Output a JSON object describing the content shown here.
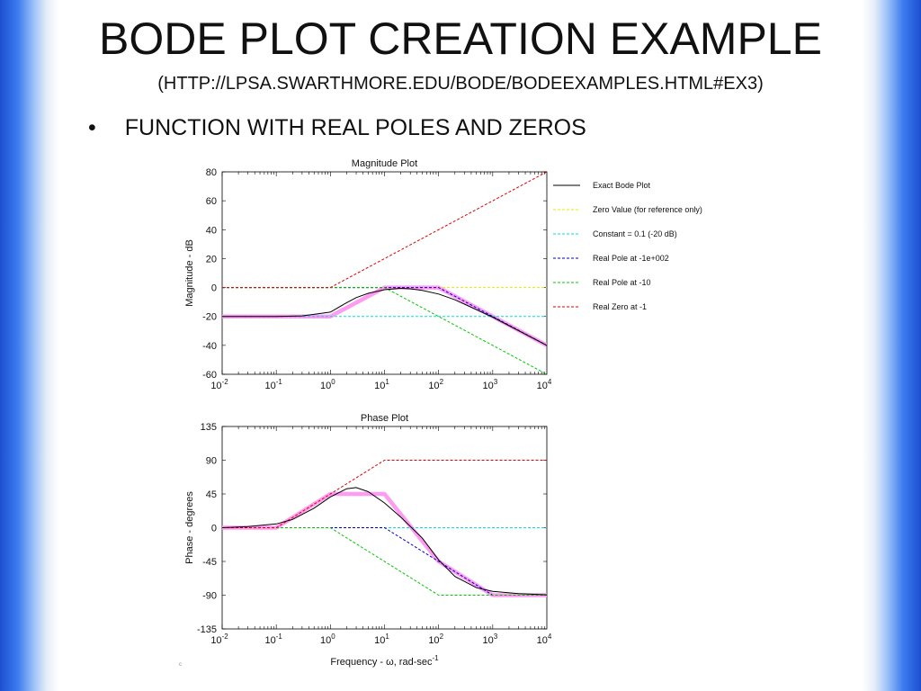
{
  "slide": {
    "title": "BODE PLOT CREATION EXAMPLE",
    "subtitle": "(HTTP://LPSA.SWARTHMORE.EDU/BODE/BODEEXAMPLES.HTML#EX3)",
    "bullet": "FUNCTION WITH REAL POLES AND ZEROS",
    "bullet_symbol": "•",
    "footer_mark": "c"
  },
  "chart_data": [
    {
      "type": "line",
      "title": "Magnitude Plot",
      "xlabel": "",
      "ylabel": "Magnitude - dB",
      "x_scale": "log",
      "xlim": [
        0.01,
        10000
      ],
      "ylim": [
        -60,
        80
      ],
      "x_ticks": [
        {
          "base": "10",
          "exp": "-2"
        },
        {
          "base": "10",
          "exp": "-1"
        },
        {
          "base": "10",
          "exp": "0"
        },
        {
          "base": "10",
          "exp": "1"
        },
        {
          "base": "10",
          "exp": "2"
        },
        {
          "base": "10",
          "exp": "3"
        },
        {
          "base": "10",
          "exp": "4"
        }
      ],
      "y_ticks": [
        "80",
        "60",
        "40",
        "20",
        "0",
        "-20",
        "-40",
        "-60"
      ],
      "legend_position": "right",
      "series": [
        {
          "name": "Exact Bode Plot",
          "color": "#000000",
          "dash": "solid",
          "x": [
            0.01,
            0.1,
            0.3,
            1,
            2,
            3,
            5,
            10,
            20,
            30,
            50,
            100,
            200,
            1000,
            10000
          ],
          "y": [
            -20,
            -20,
            -19.6,
            -17,
            -10.5,
            -7,
            -4,
            -1.5,
            -0.5,
            -0.9,
            -2,
            -4.5,
            -8.5,
            -20.5,
            -40
          ]
        },
        {
          "name": "Zero Value (for reference only)",
          "color": "#e8e800",
          "dash": "dashed",
          "x": [
            0.01,
            10000
          ],
          "y": [
            0,
            0
          ]
        },
        {
          "name": "Constant = 0.1 (-20 dB)",
          "color": "#00dede",
          "dash": "dashed",
          "x": [
            0.01,
            10000
          ],
          "y": [
            -20,
            -20
          ]
        },
        {
          "name": "Real Pole at -1e+002",
          "color": "#0000c8",
          "dash": "dashed",
          "x": [
            0.01,
            100,
            10000
          ],
          "y": [
            0,
            0,
            -40
          ]
        },
        {
          "name": "Real Pole at -10",
          "color": "#00c800",
          "dash": "dashed",
          "x": [
            0.01,
            10,
            10000
          ],
          "y": [
            0,
            0,
            -60
          ]
        },
        {
          "name": "Real Zero at -1",
          "color": "#e00000",
          "dash": "dashed",
          "x": [
            0.01,
            1,
            10000
          ],
          "y": [
            0,
            0,
            80
          ]
        },
        {
          "name": "",
          "color": "#ff9cf2",
          "dash": "thick",
          "x": [
            0.01,
            1,
            10,
            100,
            10000
          ],
          "y": [
            -20,
            -20,
            0,
            0,
            -40
          ]
        }
      ]
    },
    {
      "type": "line",
      "title": "Phase Plot",
      "xlabel": "Frequency - ω, rad-sec",
      "xlabel_sup": "-1",
      "ylabel": "Phase - degrees",
      "x_scale": "log",
      "xlim": [
        0.01,
        10000
      ],
      "ylim": [
        -135,
        135
      ],
      "x_ticks": [
        {
          "base": "10",
          "exp": "-2"
        },
        {
          "base": "10",
          "exp": "-1"
        },
        {
          "base": "10",
          "exp": "0"
        },
        {
          "base": "10",
          "exp": "1"
        },
        {
          "base": "10",
          "exp": "2"
        },
        {
          "base": "10",
          "exp": "3"
        },
        {
          "base": "10",
          "exp": "4"
        }
      ],
      "y_ticks": [
        "135",
        "90",
        "45",
        "0",
        "-45",
        "-90",
        "-135"
      ],
      "series": [
        {
          "name": "Exact Bode Plot",
          "color": "#000000",
          "dash": "solid",
          "x": [
            0.01,
            0.03,
            0.1,
            0.2,
            0.5,
            1,
            2,
            3,
            5,
            10,
            20,
            50,
            100,
            200,
            500,
            1000,
            3000,
            10000
          ],
          "y": [
            0,
            1.5,
            5,
            11,
            26,
            41,
            52,
            53.5,
            48,
            33,
            14,
            -14,
            -43,
            -65,
            -80,
            -85,
            -88,
            -89.5
          ]
        },
        {
          "name": "Zero Value (for reference only)",
          "color": "#e8e800",
          "dash": "dashed",
          "x": [
            0.01,
            10000
          ],
          "y": [
            0,
            0
          ]
        },
        {
          "name": "Constant = 0.1 (-20 dB)",
          "color": "#00dede",
          "dash": "dashed",
          "x": [
            0.01,
            10000
          ],
          "y": [
            0,
            0
          ]
        },
        {
          "name": "Real Pole at -1e+002",
          "color": "#0000c8",
          "dash": "dashed",
          "x": [
            0.01,
            10,
            1000,
            10000
          ],
          "y": [
            0,
            0,
            -90,
            -90
          ]
        },
        {
          "name": "Real Pole at -10",
          "color": "#00c800",
          "dash": "dashed",
          "x": [
            0.01,
            1,
            100,
            10000
          ],
          "y": [
            0,
            0,
            -90,
            -90
          ]
        },
        {
          "name": "Real Zero at -1",
          "color": "#e00000",
          "dash": "dashed",
          "x": [
            0.01,
            0.1,
            10,
            10000
          ],
          "y": [
            0,
            0,
            90,
            90
          ]
        },
        {
          "name": "",
          "color": "#ff9cf2",
          "dash": "thick",
          "x": [
            0.01,
            0.1,
            1,
            10,
            100,
            1000,
            10000
          ],
          "y": [
            0,
            0,
            45,
            45,
            -45,
            -90,
            -90
          ]
        }
      ]
    }
  ]
}
